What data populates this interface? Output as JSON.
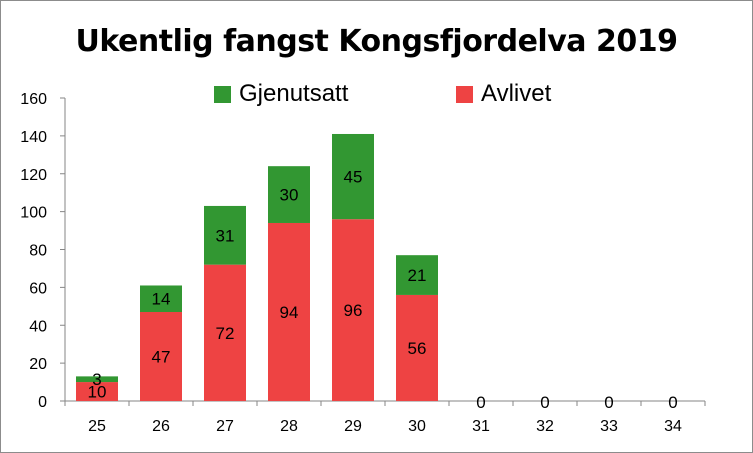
{
  "chart_data": {
    "type": "bar",
    "stacked": true,
    "title": "Ukentlig fangst Kongsfjordelva 2019",
    "xlabel": "",
    "ylabel": "",
    "categories": [
      "25",
      "26",
      "27",
      "28",
      "29",
      "30",
      "31",
      "32",
      "33",
      "34"
    ],
    "series": [
      {
        "name": "Avlivet",
        "color": "#ee4343",
        "values": [
          10,
          47,
          72,
          94,
          96,
          56,
          0,
          0,
          0,
          0
        ]
      },
      {
        "name": "Gjenutsatt",
        "color": "#329732",
        "values": [
          3,
          14,
          31,
          30,
          45,
          21,
          0,
          0,
          0,
          0
        ]
      }
    ],
    "ylim": [
      0,
      160
    ],
    "yticks": [
      0,
      20,
      40,
      60,
      80,
      100,
      120,
      140,
      160
    ],
    "grid": false,
    "legend": "top"
  }
}
